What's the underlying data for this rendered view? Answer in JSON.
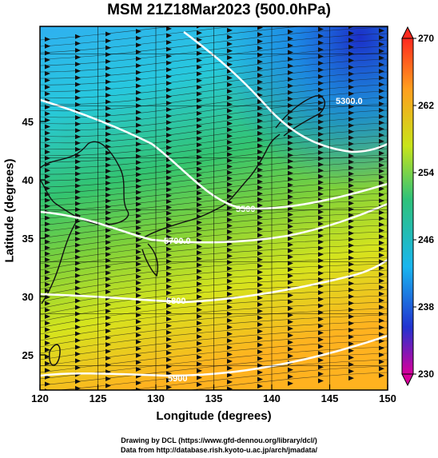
{
  "title": "MSM 21Z18Mar2023 (500.0hPa)",
  "axes": {
    "xlabel": "Longitude (degrees)",
    "ylabel": "Latitude  (degrees)",
    "xticks": [
      "120",
      "125",
      "130",
      "135",
      "140",
      "145",
      "150"
    ],
    "yticks": [
      "25",
      "30",
      "35",
      "40",
      "45"
    ]
  },
  "colorbar": {
    "ticks": [
      "270",
      "262",
      "254",
      "246",
      "238",
      "230"
    ],
    "colors": [
      "#d9009c",
      "#2233d0",
      "#19b6ef",
      "#2ec27a",
      "#c8e41a",
      "#ff9e1e",
      "#ff2a1f"
    ]
  },
  "contours": {
    "labels": [
      "5300.0",
      "5500",
      "5700.0",
      "5800",
      "5900"
    ]
  },
  "credits": {
    "line1": "Drawing by DCL (https://www.gfd-dennou.org/library/dcl/)",
    "line2": "Data from http://database.rish.kyoto-u.ac.jp/arch/jmadata/"
  }
}
